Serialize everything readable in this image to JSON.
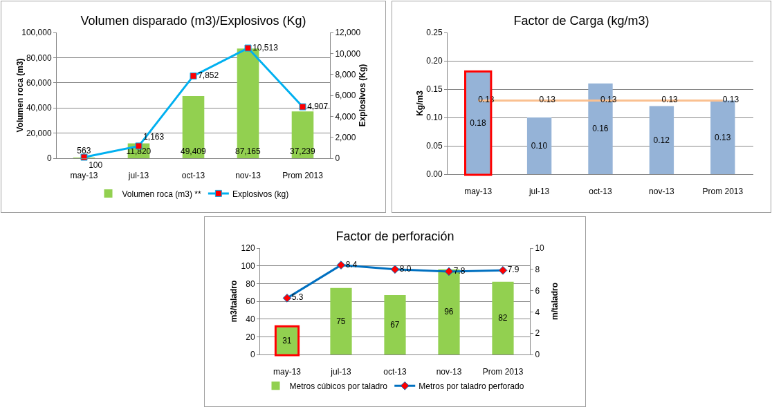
{
  "chart_data": [
    {
      "type": "bar",
      "title": "Volumen disparado (m3)/Explosivos (Kg)",
      "ylabel": "Volumen roca (m3)",
      "y2label": "Explosivos (Kg)",
      "categories": [
        "may-13",
        "jul-13",
        "oct-13",
        "nov-13",
        "Prom 2013"
      ],
      "series": [
        {
          "name": "Volumen roca (m3) **",
          "type": "bar",
          "color": "#92d050",
          "values": [
            563,
            11820,
            49409,
            87165,
            37239
          ],
          "value_labels": [
            "563",
            "11,820",
            "49,409",
            "87,165",
            "37,239"
          ]
        },
        {
          "name": "Explosivos (kg)",
          "type": "line",
          "axis": "y2",
          "color": "#00b0f0",
          "colors": [
            "#ff0000",
            "#ff0000",
            "#ff0000",
            "#ff0000",
            "#ff0000"
          ],
          "marker": "square",
          "values": [
            100,
            1163,
            7852,
            10513,
            4907
          ],
          "value_labels": [
            "100",
            "1,163",
            "7,852",
            "10,513",
            "4,907"
          ]
        }
      ],
      "ylim": [
        0,
        100000
      ],
      "yticks": [
        0,
        {
          "value": 20000,
          "label": "20,000"
        },
        {
          "value": 40000,
          "label": "40,000"
        },
        {
          "value": 60000,
          "label": "60,000"
        },
        {
          "value": 80000,
          "label": "80,000"
        },
        {
          "value": 100000,
          "label": "100,000"
        }
      ],
      "y2lim": [
        0,
        12000
      ],
      "y2ticks": [
        0,
        {
          "value": 2000,
          "label": "2,000"
        },
        {
          "value": 4000,
          "label": "4,000"
        },
        {
          "value": 6000,
          "label": "6,000"
        },
        {
          "value": 8000,
          "label": "8,000"
        },
        {
          "value": 10000,
          "label": "10,000"
        },
        {
          "value": 12000,
          "label": "12,000"
        }
      ],
      "grid": "y",
      "legend": "bottom"
    },
    {
      "type": "bar",
      "title": "Factor de Carga (kg/m3)",
      "ylabel": "Kg/m3",
      "categories": [
        "may-13",
        "jul-13",
        "oct-13",
        "nov-13",
        "Prom 2013"
      ],
      "series": [
        {
          "type": "bar",
          "color": "#95b3d7",
          "values": [
            0.18,
            0.1,
            0.16,
            0.12,
            0.13
          ],
          "value_labels": [
            "0.18",
            "0.10",
            "0.16",
            "0.12",
            "0.13"
          ]
        },
        {
          "type": "line",
          "color": "#fac090",
          "marker": "none",
          "values": [
            0.13,
            0.13,
            0.13,
            0.13,
            0.13
          ],
          "value_labels": [
            "0.13",
            "0.13",
            "0.13",
            "0.13",
            "0.13"
          ]
        }
      ],
      "ylim": [
        0,
        0.25
      ],
      "yticks": [
        {
          "value": 0,
          "label": "0.00"
        },
        0.05,
        {
          "value": 0.1,
          "label": "0.10"
        },
        0.15,
        {
          "value": 0.2,
          "label": "0.20"
        },
        0.25
      ],
      "grid": "y",
      "legend": false
    },
    {
      "type": "bar",
      "title": "Factor de perforación",
      "ylabel": "m3/taladro",
      "y2label": "m/taladro",
      "categories": [
        "may-13",
        "jul-13",
        "oct-13",
        "nov-13",
        "Prom 2013"
      ],
      "series": [
        {
          "name": "Metros cúbicos por taladro",
          "type": "bar",
          "color": "#92d050",
          "values": [
            31,
            75,
            67,
            96,
            82
          ],
          "value_labels": [
            "31",
            "75",
            "67",
            "96",
            "82"
          ]
        },
        {
          "name": "Metros por taladro perforado",
          "type": "line",
          "axis": "y2",
          "color": "#0070c0",
          "colors": [
            "#ff0000",
            "#ff0000",
            "#ff0000",
            "#ff0000",
            "#ff0000"
          ],
          "marker": "diamond",
          "values": [
            5.3,
            8.4,
            8.0,
            7.8,
            7.9
          ],
          "value_labels": [
            "5.3",
            "8.4",
            "8.0",
            "7.8",
            "7.9"
          ]
        }
      ],
      "ylim": [
        0,
        120
      ],
      "yticks": [
        0,
        20,
        40,
        60,
        80,
        100,
        120
      ],
      "y2lim": [
        0,
        10
      ],
      "y2ticks": [
        0,
        2,
        4,
        6,
        8,
        10
      ],
      "grid": "y",
      "legend": "bottom"
    }
  ]
}
